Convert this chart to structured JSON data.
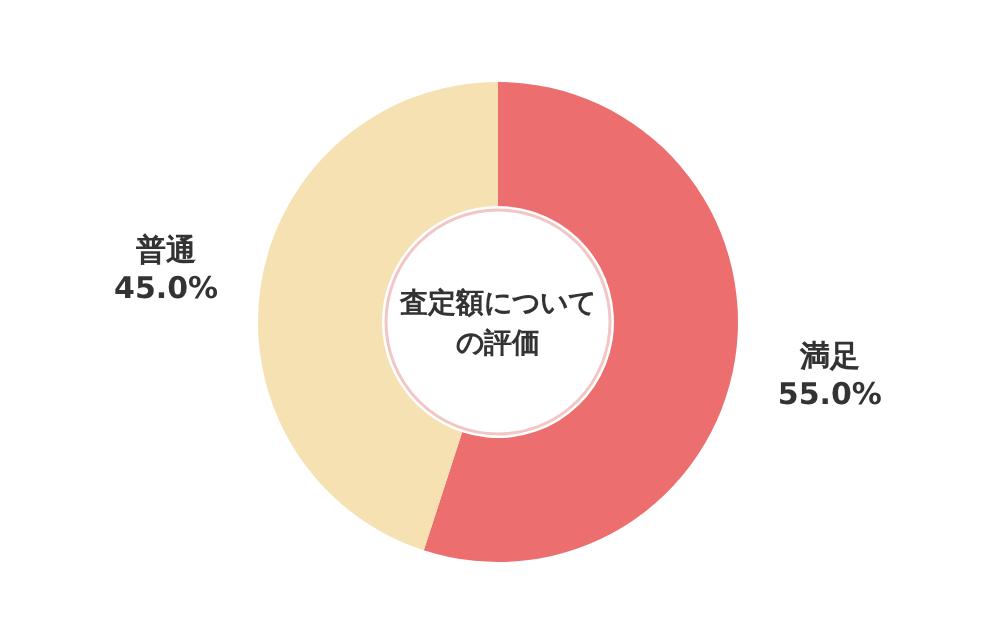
{
  "chart_data": {
    "type": "donut",
    "title": "査定額についての評価",
    "categories": [
      "満足",
      "普通"
    ],
    "values": [
      55.0,
      45.0
    ],
    "colors": [
      "#ec6e6e",
      "#f5e1b1"
    ],
    "value_labels": [
      "55.0%",
      "45.0%"
    ],
    "legend": false
  }
}
